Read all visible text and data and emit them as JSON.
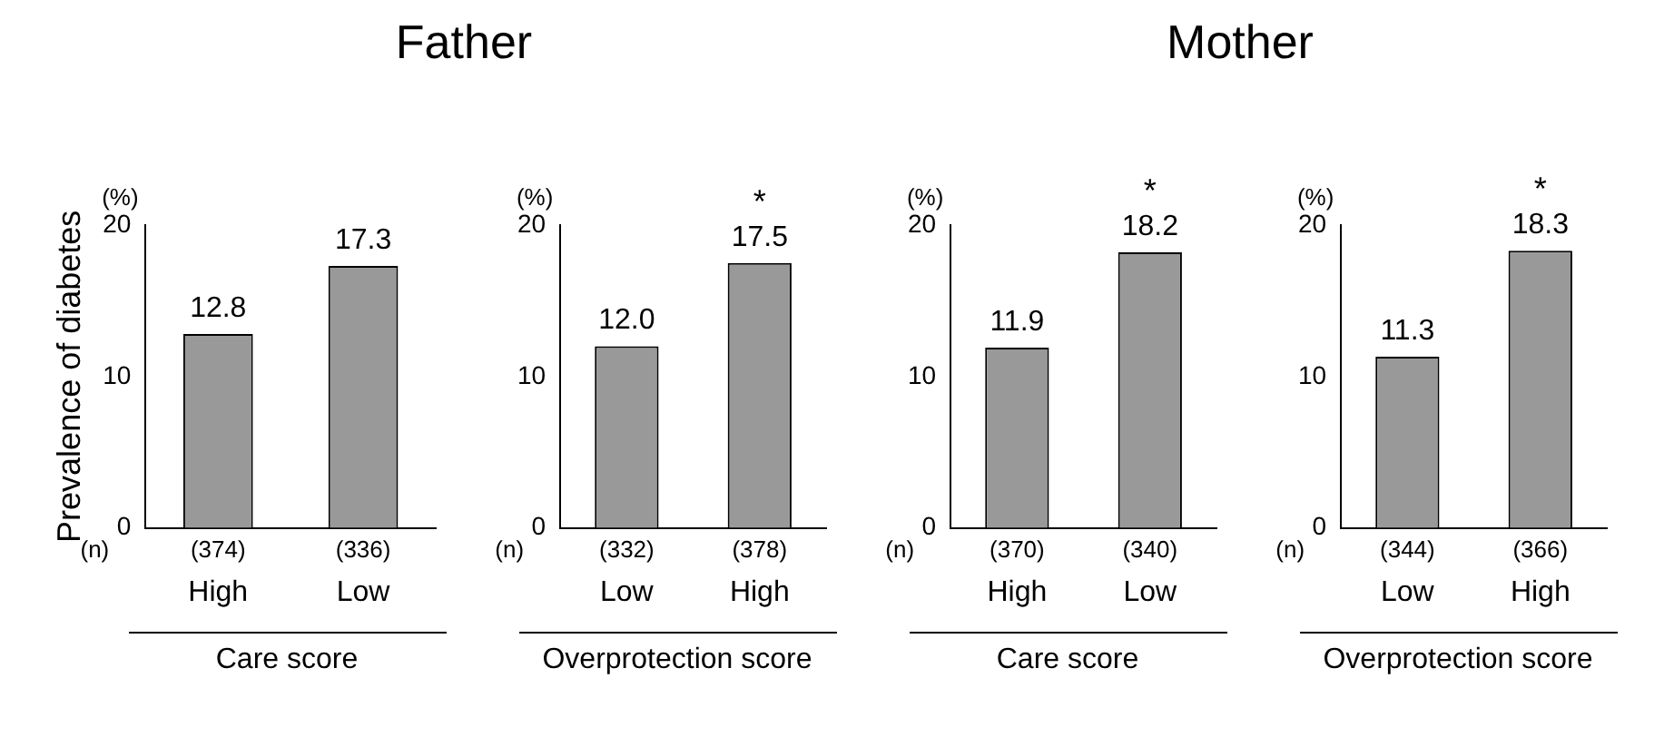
{
  "chart_data": [
    {
      "type": "bar",
      "title": "Father",
      "ylabel": "Prevalence of diabetes",
      "xlabel": "Care score",
      "categories": [
        "High",
        "Low"
      ],
      "values": [
        12.8,
        17.3
      ],
      "color": "#999999",
      "ylim": [
        0,
        20
      ],
      "yticks": [
        0,
        10,
        20
      ],
      "data_labels": true,
      "annotations": [
        "(%)",
        "(n)",
        "(374)",
        "(336)"
      ]
    },
    {
      "type": "bar",
      "xlabel": "Overprotection score",
      "categories": [
        "Low",
        "High"
      ],
      "values": [
        12.0,
        17.5
      ],
      "value_labels": [
        "12.0",
        "17.5"
      ],
      "color": "#999999",
      "ylim": [
        0,
        20
      ],
      "yticks": [
        0,
        10,
        20
      ],
      "annotations": [
        "(%)",
        "(n)",
        "(332)",
        "(378)",
        {
          "text": "*",
          "x": "High",
          "y": 17.5
        }
      ]
    },
    {
      "type": "bar",
      "title": "Mother",
      "xlabel": "Care score",
      "categories": [
        "High",
        "Low"
      ],
      "values": [
        11.9,
        18.2
      ],
      "color": "#999999",
      "ylim": [
        0,
        20
      ],
      "yticks": [
        0,
        10,
        20
      ],
      "data_labels": true,
      "annotations": [
        "(%)",
        "(n)",
        "(370)",
        "(340)",
        {
          "text": "*",
          "x": "Low",
          "y": 18.2
        }
      ]
    },
    {
      "type": "bar",
      "xlabel": "Overprotection score",
      "categories": [
        "Low",
        "High"
      ],
      "values": [
        11.3,
        18.3
      ],
      "color": "#999999",
      "ylim": [
        0,
        20
      ],
      "yticks": [
        0,
        10,
        20
      ],
      "data_labels": true,
      "annotations": [
        "(%)",
        "(n)",
        "(344)",
        "(366)",
        {
          "text": "*",
          "x": "High",
          "y": 18.3
        }
      ]
    }
  ]
}
